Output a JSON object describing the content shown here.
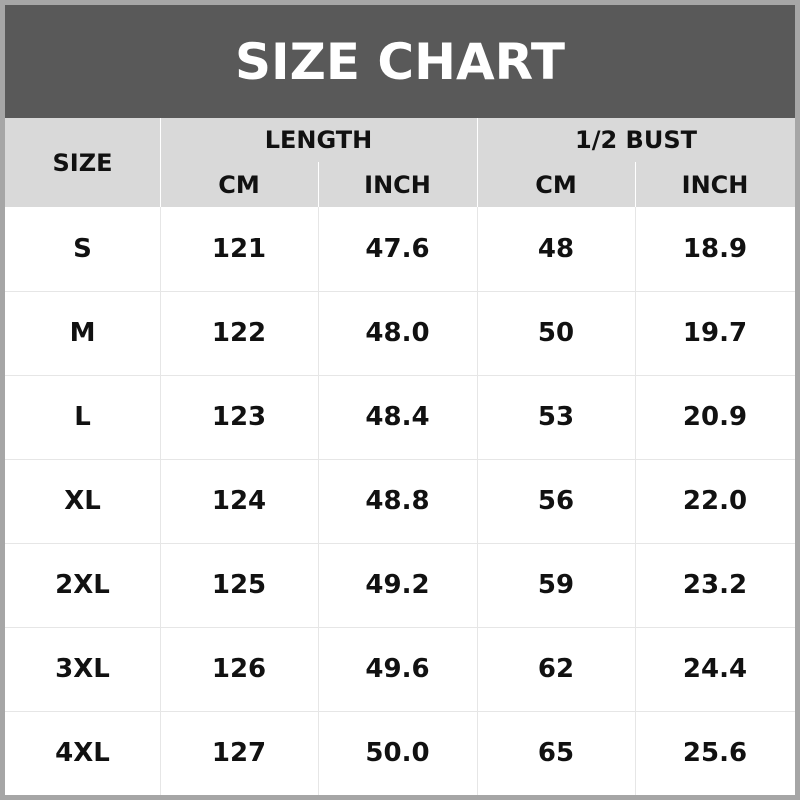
{
  "header": {
    "title": "SIZE CHART"
  },
  "table": {
    "size_label": "SIZE",
    "groups": [
      {
        "label": "LENGTH",
        "units": [
          "CM",
          "INCH"
        ]
      },
      {
        "label": "1/2 BUST",
        "units": [
          "CM",
          "INCH"
        ]
      }
    ],
    "rows": [
      [
        "S",
        "121",
        "47.6",
        "48",
        "18.9"
      ],
      [
        "M",
        "122",
        "48.0",
        "50",
        "19.7"
      ],
      [
        "L",
        "123",
        "48.4",
        "53",
        "20.9"
      ],
      [
        "XL",
        "124",
        "48.8",
        "56",
        "22.0"
      ],
      [
        "2XL",
        "125",
        "49.2",
        "59",
        "23.2"
      ],
      [
        "3XL",
        "126",
        "49.6",
        "62",
        "24.4"
      ],
      [
        "4XL",
        "127",
        "50.0",
        "65",
        "25.6"
      ]
    ]
  }
}
